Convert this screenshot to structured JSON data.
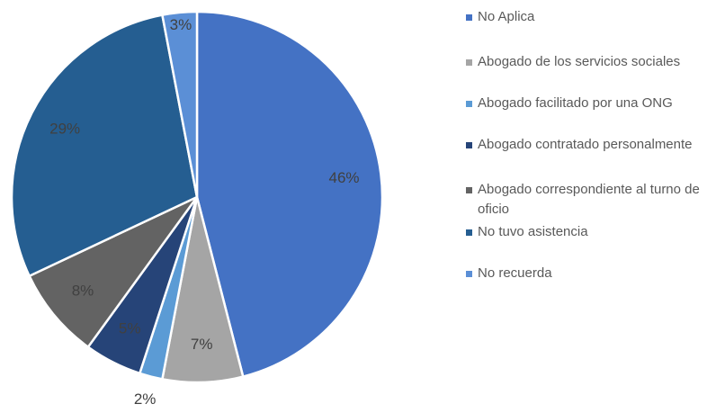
{
  "chart_data": {
    "type": "pie",
    "categories": [
      "No Aplica",
      "Abogado de los servicios sociales",
      "Abogado facilitado por una ONG",
      "Abogado contratado personalmente",
      "Abogado correspondiente al turno de oficio",
      "No tuvo asistencia",
      "No recuerda"
    ],
    "values": [
      46,
      7,
      2,
      5,
      8,
      29,
      3
    ],
    "value_labels": [
      "46%",
      "7%",
      "2%",
      "5%",
      "8%",
      "29%",
      "3%"
    ],
    "colors": [
      "#4472c4",
      "#a5a5a5",
      "#5b9bd5",
      "#264478",
      "#636363",
      "#255e91",
      "#5b8fd6"
    ],
    "legend": "right"
  }
}
